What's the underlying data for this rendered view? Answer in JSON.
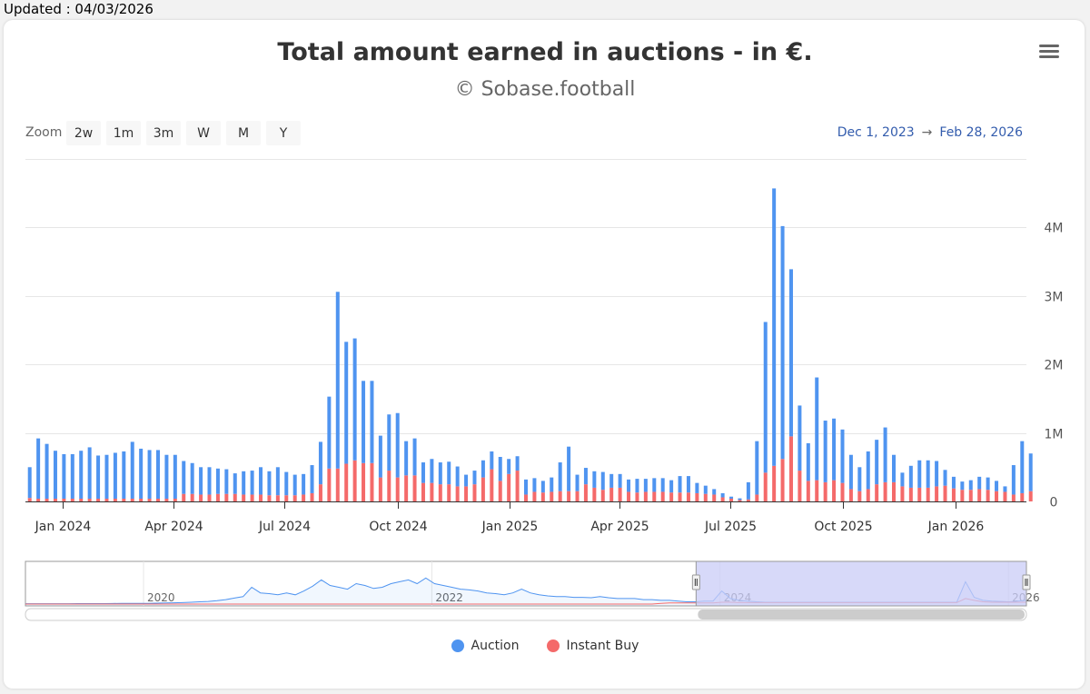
{
  "updated_text": "Updated : 04/03/2026",
  "title": "Total amount earned in auctions - in €.",
  "subtitle": "© Sobase.football",
  "zoom": {
    "label": "Zoom",
    "buttons": [
      "2w",
      "1m",
      "3m",
      "W",
      "M",
      "Y"
    ]
  },
  "range": {
    "from": "Dec 1, 2023",
    "arrow": "→",
    "to": "Feb 28, 2026"
  },
  "colors": {
    "auction": "#4f94f0",
    "instant_buy": "#f46a6a",
    "navigator_fill": "#c9ccf7"
  },
  "chart_data": {
    "type": "bar",
    "stacked": true,
    "ylim": [
      0,
      5000000
    ],
    "yticks": [
      {
        "value": 0,
        "label": "0"
      },
      {
        "value": 1000000,
        "label": "1M"
      },
      {
        "value": 2000000,
        "label": "2M"
      },
      {
        "value": 3000000,
        "label": "3M"
      },
      {
        "value": 4000000,
        "label": "4M"
      }
    ],
    "xlim_week_index": [
      0,
      117
    ],
    "xticks": [
      {
        "label": "Jan 2024",
        "index": 4.3
      },
      {
        "label": "Apr 2024",
        "index": 17.3
      },
      {
        "label": "Jul 2024",
        "index": 30.3
      },
      {
        "label": "Oct 2024",
        "index": 43.5
      },
      {
        "label": "Jan 2025",
        "index": 56.6
      },
      {
        "label": "Apr 2025",
        "index": 69.4
      },
      {
        "label": "Jul 2025",
        "index": 82.4
      },
      {
        "label": "Oct 2025",
        "index": 95.6
      },
      {
        "label": "Jan 2026",
        "index": 108.7
      }
    ],
    "series": [
      {
        "name": "Auction",
        "values": [
          450000,
          880000,
          800000,
          700000,
          650000,
          650000,
          700000,
          750000,
          630000,
          640000,
          670000,
          690000,
          830000,
          730000,
          710000,
          710000,
          640000,
          640000,
          480000,
          450000,
          400000,
          400000,
          370000,
          360000,
          300000,
          340000,
          350000,
          400000,
          350000,
          410000,
          340000,
          300000,
          300000,
          410000,
          620000,
          1050000,
          2580000,
          1780000,
          1780000,
          1200000,
          1200000,
          610000,
          820000,
          940000,
          500000,
          540000,
          300000,
          350000,
          320000,
          330000,
          290000,
          170000,
          200000,
          250000,
          260000,
          350000,
          220000,
          210000,
          220000,
          200000,
          170000,
          210000,
          420000,
          650000,
          240000,
          240000,
          240000,
          260000,
          200000,
          200000,
          180000,
          200000,
          190000,
          200000,
          200000,
          180000,
          240000,
          240000,
          150000,
          120000,
          80000,
          60000,
          30000,
          25000,
          250000,
          780000,
          2200000,
          4050000,
          3400000,
          2440000,
          950000,
          550000,
          1500000,
          900000,
          900000,
          780000,
          500000,
          350000,
          550000,
          650000,
          800000,
          400000,
          200000,
          320000,
          400000,
          400000,
          370000,
          230000,
          170000,
          120000,
          140000,
          180000,
          180000,
          150000,
          80000,
          430000,
          760000,
          550000
        ]
      },
      {
        "name": "Instant Buy",
        "values": [
          50000,
          40000,
          40000,
          40000,
          40000,
          40000,
          40000,
          40000,
          40000,
          40000,
          40000,
          40000,
          40000,
          40000,
          40000,
          40000,
          40000,
          40000,
          110000,
          110000,
          100000,
          100000,
          110000,
          110000,
          110000,
          100000,
          100000,
          100000,
          90000,
          90000,
          90000,
          90000,
          100000,
          120000,
          250000,
          480000,
          480000,
          550000,
          600000,
          560000,
          560000,
          350000,
          450000,
          350000,
          380000,
          380000,
          270000,
          270000,
          250000,
          250000,
          220000,
          220000,
          250000,
          350000,
          470000,
          300000,
          400000,
          450000,
          100000,
          140000,
          130000,
          140000,
          150000,
          150000,
          150000,
          250000,
          200000,
          170000,
          200000,
          200000,
          140000,
          130000,
          140000,
          140000,
          140000,
          130000,
          130000,
          130000,
          120000,
          110000,
          100000,
          60000,
          40000,
          20000,
          30000,
          100000,
          420000,
          520000,
          620000,
          950000,
          450000,
          300000,
          310000,
          280000,
          310000,
          270000,
          180000,
          150000,
          180000,
          250000,
          280000,
          280000,
          220000,
          200000,
          200000,
          200000,
          220000,
          230000,
          190000,
          170000,
          170000,
          180000,
          170000,
          150000,
          140000,
          100000,
          120000,
          150000
        ]
      }
    ],
    "navigator": {
      "labels": [
        {
          "label": "2020",
          "pos": 0.118
        },
        {
          "label": "2022",
          "pos": 0.406
        },
        {
          "label": "2024",
          "pos": 0.694
        },
        {
          "label": "2026",
          "pos": 0.982
        }
      ],
      "selection": [
        0.67,
        1.0
      ],
      "series": [
        {
          "name": "Auction",
          "values": [
            0.01,
            0.01,
            0.01,
            0.01,
            0.01,
            0.01,
            0.012,
            0.012,
            0.012,
            0.012,
            0.015,
            0.02,
            0.02,
            0.02,
            0.02,
            0.025,
            0.03,
            0.035,
            0.04,
            0.05,
            0.06,
            0.07,
            0.09,
            0.12,
            0.16,
            0.2,
            0.45,
            0.3,
            0.28,
            0.25,
            0.3,
            0.25,
            0.35,
            0.48,
            0.65,
            0.5,
            0.45,
            0.4,
            0.55,
            0.5,
            0.42,
            0.45,
            0.55,
            0.6,
            0.65,
            0.55,
            0.7,
            0.55,
            0.5,
            0.45,
            0.4,
            0.38,
            0.35,
            0.3,
            0.28,
            0.25,
            0.3,
            0.4,
            0.3,
            0.25,
            0.22,
            0.2,
            0.2,
            0.18,
            0.18,
            0.17,
            0.2,
            0.17,
            0.15,
            0.15,
            0.15,
            0.12,
            0.12,
            0.1,
            0.1,
            0.08,
            0.06,
            0.06,
            0.08,
            0.08,
            0.35,
            0.15,
            0.1,
            0.08,
            0.06,
            0.05,
            0.05,
            0.05,
            0.05,
            0.05,
            0.05,
            0.05,
            0.05,
            0.05,
            0.05,
            0.05,
            0.05,
            0.05,
            0.05,
            0.05,
            0.05,
            0.05,
            0.05,
            0.05,
            0.05,
            0.05,
            0.05,
            0.05,
            0.6,
            0.18,
            0.1,
            0.08,
            0.07,
            0.06,
            0.08,
            0.1
          ]
        },
        {
          "name": "Instant Buy",
          "values": [
            0,
            0,
            0,
            0,
            0,
            0,
            0,
            0,
            0,
            0,
            0,
            0,
            0,
            0,
            0,
            0,
            0,
            0,
            0,
            0,
            0,
            0,
            0,
            0,
            0,
            0,
            0,
            0,
            0,
            0,
            0,
            0,
            0,
            0,
            0,
            0,
            0,
            0,
            0,
            0,
            0,
            0,
            0,
            0,
            0,
            0,
            0,
            0,
            0,
            0,
            0,
            0,
            0,
            0,
            0,
            0,
            0,
            0,
            0,
            0,
            0,
            0,
            0,
            0,
            0,
            0,
            0,
            0,
            0,
            0,
            0,
            0,
            0,
            0.02,
            0.03,
            0.03,
            0.03,
            0.03,
            0.03,
            0.03,
            0.05,
            0.05,
            0.04,
            0.04,
            0.04,
            0.04,
            0.04,
            0.04,
            0.04,
            0.04,
            0.04,
            0.04,
            0.04,
            0.04,
            0.04,
            0.04,
            0.04,
            0.04,
            0.04,
            0.04,
            0.04,
            0.04,
            0.04,
            0.04,
            0.04,
            0.04,
            0.04,
            0.04,
            0.15,
            0.1,
            0.06,
            0.05,
            0.05,
            0.05,
            0.05,
            0.05
          ]
        }
      ]
    }
  },
  "legend": [
    {
      "name": "Auction"
    },
    {
      "name": "Instant Buy"
    }
  ]
}
